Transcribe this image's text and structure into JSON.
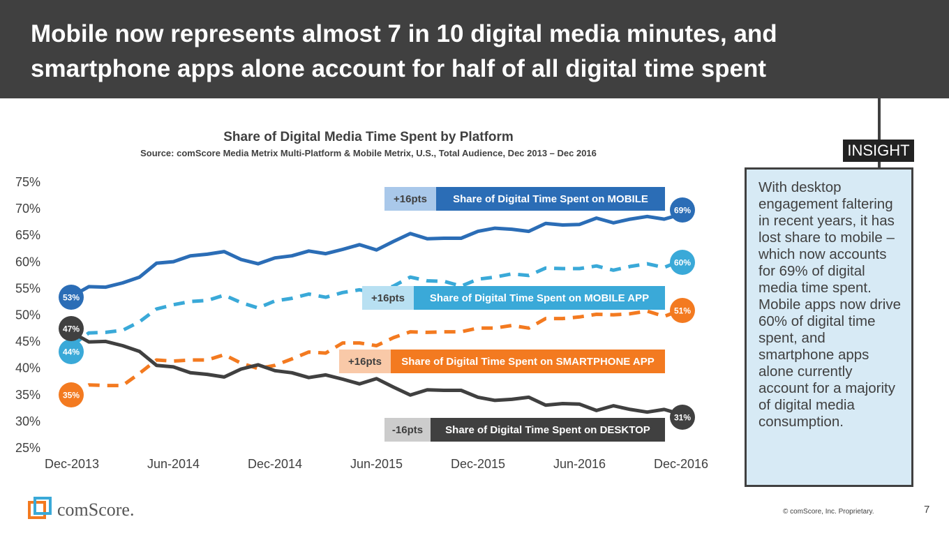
{
  "header": {
    "title": "Mobile now represents almost 7 in 10 digital media minutes, and smartphone apps alone account for half of all digital time spent"
  },
  "chart_data": {
    "type": "line",
    "title": "Share of Digital Media Time Spent by Platform",
    "subtitle": "Source: comScore Media Metrix Multi-Platform & Mobile Metrix, U.S., Total Audience, Dec 2013 – Dec 2016",
    "xlabel": "",
    "ylabel": "",
    "ylim": [
      25,
      75
    ],
    "y_ticks": [
      "75%",
      "70%",
      "65%",
      "60%",
      "55%",
      "50%",
      "45%",
      "40%",
      "35%",
      "30%",
      "25%"
    ],
    "x_ticks": [
      "Dec-2013",
      "Jun-2014",
      "Dec-2014",
      "Jun-2015",
      "Dec-2015",
      "Jun-2016",
      "Dec-2016"
    ],
    "grid": false,
    "series": [
      {
        "key": "mobile",
        "name": "Share of Digital Time Spent on MOBILE",
        "change": "+16pts",
        "start_label": "53%",
        "end_label": "69%",
        "color": "#2b6db6",
        "change_color": "#a9c8ea",
        "dashed": false,
        "values": [
          53.4,
          55.2,
          55.1,
          55.9,
          57.0,
          59.6,
          59.9,
          61.0,
          61.3,
          61.8,
          60.3,
          59.5,
          60.6,
          61.0,
          61.9,
          61.4,
          62.2,
          63.1,
          62.1,
          63.7,
          65.2,
          64.2,
          64.3,
          64.3,
          65.6,
          66.2,
          66.0,
          65.6,
          67.1,
          66.8,
          66.9,
          68.1,
          67.2,
          67.9,
          68.4,
          67.9,
          68.8
        ]
      },
      {
        "key": "mobile_app",
        "name": "Share of Digital Time Spent on MOBILE APP",
        "change": "+16pts",
        "start_label": "44%",
        "end_label": "60%",
        "color": "#3aa9d8",
        "change_color": "#b8e0f2",
        "dashed": true,
        "values": [
          44.1,
          46.5,
          46.6,
          47.0,
          48.6,
          51.0,
          51.8,
          52.4,
          52.6,
          53.6,
          52.2,
          51.2,
          52.5,
          53.0,
          53.8,
          53.2,
          54.1,
          54.6,
          54.0,
          55.3,
          57.0,
          56.3,
          56.2,
          55.3,
          56.6,
          57.0,
          57.6,
          57.3,
          58.7,
          58.6,
          58.6,
          59.1,
          58.3,
          59.0,
          59.5,
          58.8,
          60.1
        ]
      },
      {
        "key": "smartphone_app",
        "name": "Share of Digital Time Spent on SMARTPHONE APP",
        "change": "+16pts",
        "start_label": "35%",
        "end_label": "51%",
        "color": "#f37a20",
        "change_color": "#f9c9a8",
        "dashed": true,
        "values": [
          35.0,
          36.7,
          36.6,
          36.6,
          38.9,
          41.4,
          41.2,
          41.4,
          41.4,
          42.4,
          40.8,
          39.8,
          40.4,
          41.6,
          42.9,
          42.7,
          44.6,
          44.6,
          44.1,
          45.6,
          46.7,
          46.6,
          46.7,
          46.7,
          47.4,
          47.4,
          47.9,
          47.4,
          49.2,
          49.2,
          49.5,
          50.0,
          49.9,
          50.1,
          50.6,
          49.6,
          50.8
        ]
      },
      {
        "key": "desktop",
        "name": "Share of Digital Time Spent on DESKTOP",
        "change": "-16pts",
        "start_label": "47%",
        "end_label": "31%",
        "color": "#404040",
        "change_color": "#cccccc",
        "dashed": false,
        "values": [
          46.6,
          44.8,
          44.9,
          44.1,
          43.0,
          40.4,
          40.1,
          39.0,
          38.7,
          38.2,
          39.7,
          40.5,
          39.4,
          39.0,
          38.1,
          38.6,
          37.8,
          36.9,
          37.9,
          36.3,
          34.8,
          35.8,
          35.7,
          35.7,
          34.4,
          33.8,
          34.0,
          34.4,
          32.9,
          33.2,
          33.1,
          31.9,
          32.8,
          32.1,
          31.6,
          32.1,
          31.2
        ]
      }
    ]
  },
  "insight": {
    "tag": "INSIGHT",
    "text": "With desktop engagement faltering in recent years, it has lost share to mobile – which now accounts for 69% of digital media time spent. Mobile apps now drive 60% of digital time spent, and smartphone apps alone currently account for a majority of digital media consumption."
  },
  "footer": {
    "brand": "comScore.",
    "copyright": "© comScore, Inc. Proprietary.",
    "page": "7"
  }
}
